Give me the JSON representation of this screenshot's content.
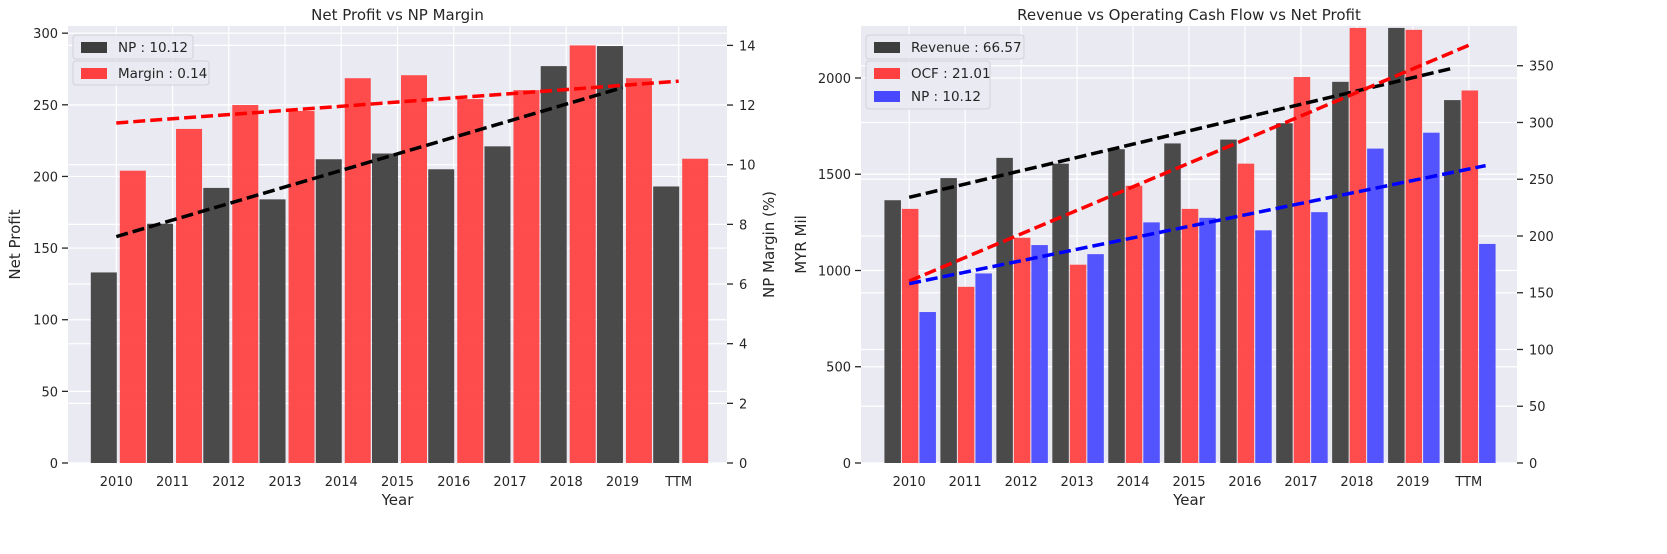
{
  "colors": {
    "plot_bg": "#eaeaf2",
    "grid": "#ffffff",
    "np_dark": "#3d3d3d",
    "margin_red": "#ff4040",
    "ocf_red": "#ff4040",
    "np_blue": "#4848ff",
    "trend_black": "#000000",
    "trend_red": "#ff0000",
    "trend_blue": "#0000ff"
  },
  "chart_data": [
    {
      "type": "bar",
      "title": "Net Profit vs NP Margin",
      "xlabel": "Year",
      "ylabel": "Net Profit",
      "y2label": "NP Margin (%)",
      "categories": [
        "2010",
        "2011",
        "2012",
        "2013",
        "2014",
        "2015",
        "2016",
        "2017",
        "2018",
        "2019",
        "TTM"
      ],
      "ylim": [
        0,
        305
      ],
      "y2lim": [
        0,
        14.65
      ],
      "yticks": [
        0,
        50,
        100,
        150,
        200,
        250,
        300
      ],
      "y2ticks": [
        0,
        2,
        4,
        6,
        8,
        10,
        12,
        14
      ],
      "legend_placement": "top-left",
      "grid": true,
      "series": [
        {
          "name": "NP : 10.12",
          "axis": "left",
          "values": [
            133,
            167,
            192,
            184,
            212,
            216,
            205,
            221,
            277,
            291,
            193
          ]
        },
        {
          "name": "Margin : 0.14",
          "axis": "right",
          "values": [
            9.8,
            11.2,
            12.0,
            11.8,
            12.9,
            13.0,
            12.2,
            12.5,
            14.0,
            12.9,
            10.2
          ]
        }
      ],
      "trendlines": [
        {
          "axis": "left",
          "from": [
            0,
            158
          ],
          "to": [
            9,
            262
          ]
        },
        {
          "axis": "right",
          "from": [
            0,
            11.4
          ],
          "to": [
            10,
            12.8
          ]
        }
      ]
    },
    {
      "type": "bar",
      "title": "Revenue vs Operating Cash Flow vs Net Profit",
      "xlabel": "Year",
      "ylabel": "MYR Mil",
      "categories": [
        "2010",
        "2011",
        "2012",
        "2013",
        "2014",
        "2015",
        "2016",
        "2017",
        "2018",
        "2019",
        "TTM"
      ],
      "ylim": [
        0,
        2270
      ],
      "y2lim": [
        0,
        385
      ],
      "yticks": [
        0,
        500,
        1000,
        1500,
        2000
      ],
      "y2ticks": [
        0,
        50,
        100,
        150,
        200,
        250,
        300,
        350
      ],
      "legend_placement": "top-left",
      "grid": true,
      "series": [
        {
          "name": "Revenue : 66.57",
          "axis": "left",
          "values": [
            1365,
            1480,
            1585,
            1555,
            1630,
            1660,
            1680,
            1765,
            1980,
            2260,
            1885
          ]
        },
        {
          "name": "OCF : 21.01",
          "axis": "left",
          "values": [
            1320,
            915,
            1170,
            1030,
            1440,
            1320,
            1555,
            2005,
            2260,
            2250,
            1935
          ]
        },
        {
          "name": "NP : 10.12",
          "axis": "right",
          "values": [
            133,
            167,
            192,
            184,
            212,
            216,
            205,
            221,
            277,
            291,
            193
          ]
        }
      ],
      "trendlines": [
        {
          "axis": "left",
          "from": [
            0,
            1380
          ],
          "to": [
            9.7,
            2050
          ]
        },
        {
          "axis": "left",
          "from": [
            0,
            945
          ],
          "to": [
            10,
            2170
          ]
        },
        {
          "axis": "right",
          "from": [
            0,
            158
          ],
          "to": [
            10.3,
            262
          ]
        }
      ]
    }
  ]
}
